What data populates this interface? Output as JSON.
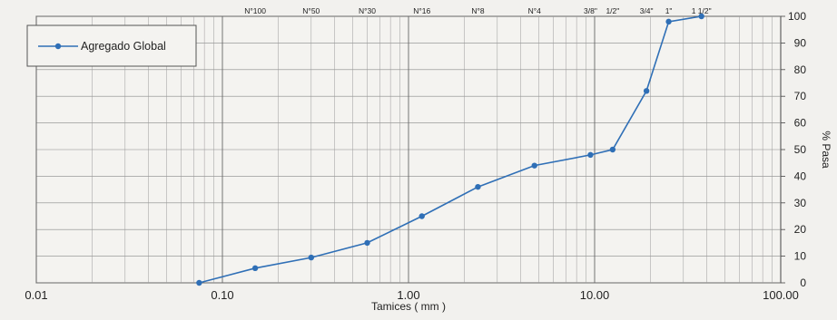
{
  "chart_data": {
    "type": "line",
    "x_scale": "log",
    "xlim": [
      0.01,
      100
    ],
    "ylim": [
      0,
      100
    ],
    "xlabel": "Tamices ( mm )",
    "ylabel": "% Pasa",
    "x_ticks": [
      {
        "value": 0.01,
        "label": "0.01"
      },
      {
        "value": 0.1,
        "label": "0.10"
      },
      {
        "value": 1,
        "label": "1.00"
      },
      {
        "value": 10,
        "label": "10.00"
      },
      {
        "value": 100,
        "label": "100.00"
      }
    ],
    "y_ticks": [
      0,
      10,
      20,
      30,
      40,
      50,
      60,
      70,
      80,
      90,
      100
    ],
    "sieve_labels": [
      {
        "value": 0.15,
        "label": "N°100"
      },
      {
        "value": 0.3,
        "label": "N°50"
      },
      {
        "value": 0.6,
        "label": "N°30"
      },
      {
        "value": 1.18,
        "label": "N°16"
      },
      {
        "value": 2.36,
        "label": "N°8"
      },
      {
        "value": 4.75,
        "label": "N°4"
      },
      {
        "value": 9.5,
        "label": "3/8\""
      },
      {
        "value": 12.5,
        "label": "1/2\""
      },
      {
        "value": 19,
        "label": "3/4\""
      },
      {
        "value": 25,
        "label": "1\""
      },
      {
        "value": 37.5,
        "label": "1 1/2\""
      }
    ],
    "grid": true,
    "legend_position": "top-left",
    "series": [
      {
        "name": "Agregado Global",
        "color": "#2f6fb6",
        "x": [
          0.075,
          0.15,
          0.3,
          0.6,
          1.18,
          2.36,
          4.75,
          9.5,
          12.5,
          19,
          25,
          37.5
        ],
        "y": [
          0,
          5.5,
          9.5,
          15,
          25,
          36,
          44,
          48,
          50,
          72,
          98,
          100
        ]
      }
    ]
  }
}
